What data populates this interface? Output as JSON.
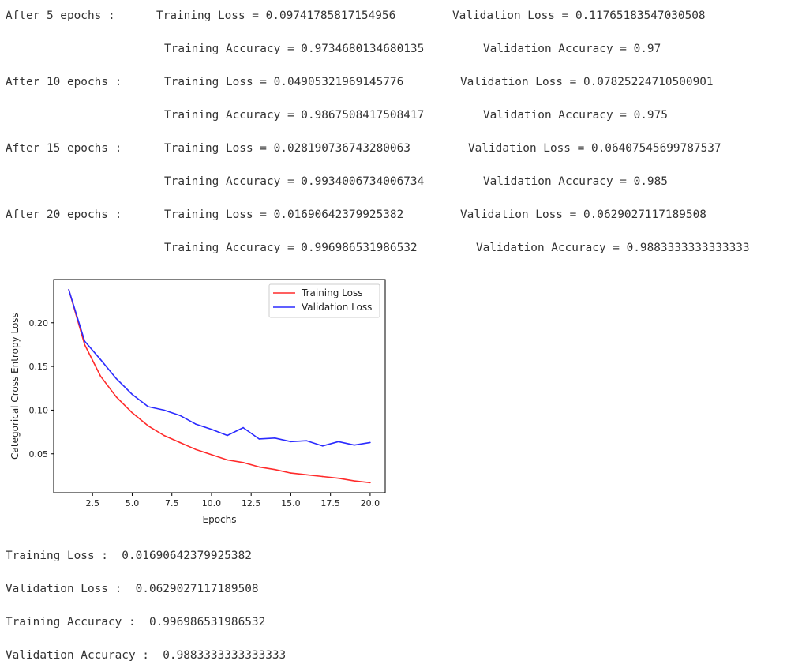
{
  "epoch_log": [
    {
      "prefix": "After 5 epochs :",
      "training_loss": "Training Loss = 0.09741785817154956",
      "validation_loss": "Validation Loss = 0.11765183547030508",
      "training_accuracy": "Training Accuracy = 0.9734680134680135",
      "validation_accuracy": "Validation Accuracy = 0.97"
    },
    {
      "prefix": "After 10 epochs :",
      "training_loss": "Training Loss = 0.04905321969145776",
      "validation_loss": "Validation Loss = 0.07825224710500901",
      "training_accuracy": "Training Accuracy = 0.9867508417508417",
      "validation_accuracy": "Validation Accuracy = 0.975"
    },
    {
      "prefix": "After 15 epochs :",
      "training_loss": "Training Loss = 0.028190736743280063",
      "validation_loss": "Validation Loss = 0.06407545699787537",
      "training_accuracy": "Training Accuracy = 0.9934006734006734",
      "validation_accuracy": "Validation Accuracy = 0.985"
    },
    {
      "prefix": "After 20 epochs :",
      "training_loss": "Training Loss = 0.01690642379925382",
      "validation_loss": "Validation Loss = 0.0629027117189508",
      "training_accuracy": "Training Accuracy = 0.996986531986532",
      "validation_accuracy": "Validation Accuracy = 0.9883333333333333"
    }
  ],
  "final_results": {
    "training_loss": "Training Loss :  0.01690642379925382",
    "validation_loss": "Validation Loss :  0.0629027117189508",
    "training_accuracy": "Training Accuracy :  0.996986531986532",
    "validation_accuracy": "Validation Accuracy :  0.9883333333333333"
  },
  "chart_data": {
    "type": "line",
    "xlabel": "Epochs",
    "ylabel": "Categorical Cross Entropy Loss",
    "xlim": [
      0.05,
      20.95
    ],
    "ylim": [
      0.0055,
      0.2495
    ],
    "xticks": [
      2.5,
      5.0,
      7.5,
      10.0,
      12.5,
      15.0,
      17.5,
      20.0
    ],
    "xtick_labels": [
      "2.5",
      "5.0",
      "7.5",
      "10.0",
      "12.5",
      "15.0",
      "17.5",
      "20.0"
    ],
    "yticks": [
      0.05,
      0.1,
      0.15,
      0.2
    ],
    "ytick_labels": [
      "0.05",
      "0.10",
      "0.15",
      "0.20"
    ],
    "grid": false,
    "legend_position": "top-right",
    "x": [
      1,
      2,
      3,
      4,
      5,
      6,
      7,
      8,
      9,
      10,
      11,
      12,
      13,
      14,
      15,
      16,
      17,
      18,
      19,
      20
    ],
    "series": [
      {
        "name": "Training Loss",
        "color": "#ff2b2b",
        "values": [
          0.238,
          0.175,
          0.139,
          0.115,
          0.097,
          0.082,
          0.071,
          0.063,
          0.055,
          0.049,
          0.043,
          0.04,
          0.035,
          0.032,
          0.028,
          0.026,
          0.024,
          0.022,
          0.019,
          0.017
        ]
      },
      {
        "name": "Validation Loss",
        "color": "#2b2bff",
        "values": [
          0.238,
          0.179,
          0.158,
          0.136,
          0.118,
          0.104,
          0.1,
          0.094,
          0.084,
          0.078,
          0.071,
          0.08,
          0.067,
          0.068,
          0.064,
          0.065,
          0.059,
          0.064,
          0.06,
          0.063
        ]
      }
    ]
  }
}
